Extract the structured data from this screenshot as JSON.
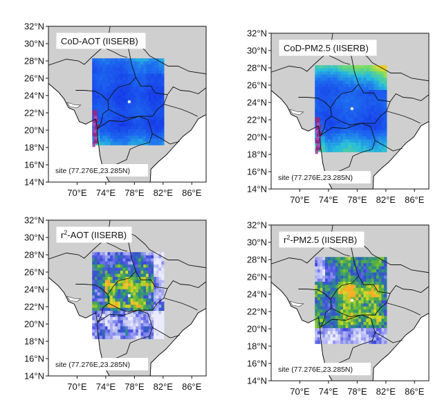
{
  "panels": [
    {
      "title_main": "CoD-AOT (IISERB)",
      "title_sup": "",
      "title_rest": "",
      "site_label": "site (77.276E,23.285N)",
      "y_ticks": [
        "32°N",
        "30°N",
        "28°N",
        "26°N",
        "24°N",
        "22°N",
        "20°N",
        "18°N",
        "16°N",
        "14°N"
      ],
      "x_ticks": [
        "70°E",
        "74°E",
        "78°E",
        "82°E",
        "86°E"
      ],
      "field": "cod-aot"
    },
    {
      "title_main": "CoD-PM2.5 (IISERB)",
      "title_sup": "",
      "title_rest": "",
      "site_label": "site (77.276E,23.285N)",
      "y_ticks": [
        "32°N",
        "30°N",
        "28°N",
        "26°N",
        "24°N",
        "22°N",
        "20°N",
        "18°N",
        "16°N",
        "14°N"
      ],
      "x_ticks": [
        "70°E",
        "74°E",
        "78°E",
        "82°E",
        "86°E"
      ],
      "field": "cod-pm"
    },
    {
      "title_main": "r",
      "title_sup": "2",
      "title_rest": "-AOT (IISERB)",
      "site_label": "site (77.276E,23.285N)",
      "y_ticks": [
        "32°N",
        "30°N",
        "28°N",
        "26°N",
        "24°N",
        "22°N",
        "20°N",
        "18°N",
        "16°N",
        "14°N"
      ],
      "x_ticks": [
        "70°E",
        "74°E",
        "78°E",
        "82°E",
        "86°E"
      ],
      "field": "r2-aot"
    },
    {
      "title_main": "r",
      "title_sup": "2",
      "title_rest": "-PM2.5 (IISERB)",
      "site_label": "site (77.276E,23.285N)",
      "y_ticks": [
        "32°N",
        "30°N",
        "28°N",
        "26°N",
        "24°N",
        "22°N",
        "20°N",
        "18°N",
        "16°N",
        "14°N"
      ],
      "x_ticks": [
        "70°E",
        "74°E",
        "78°E",
        "82°E",
        "86°E"
      ],
      "field": "r2-pm"
    }
  ],
  "colors": {
    "land": "#cfcfcf",
    "ocean": "#ffffff",
    "border": "#111111"
  }
}
